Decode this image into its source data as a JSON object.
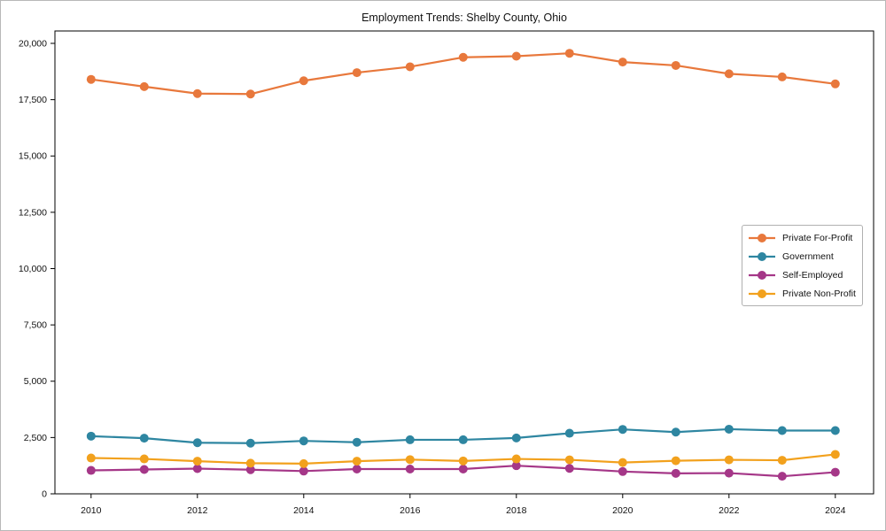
{
  "chart_data": {
    "type": "line",
    "title": "Employment Trends: Shelby County, Ohio",
    "xlabel": "",
    "ylabel": "",
    "x": [
      2010,
      2011,
      2012,
      2013,
      2014,
      2015,
      2016,
      2017,
      2018,
      2019,
      2020,
      2021,
      2022,
      2023,
      2024
    ],
    "series": [
      {
        "name": "Private For-Profit",
        "color": "#E8783C",
        "values": [
          18400,
          18080,
          17770,
          17750,
          18340,
          18700,
          18960,
          19380,
          19430,
          19560,
          19170,
          19020,
          18650,
          18510,
          18200
        ]
      },
      {
        "name": "Government",
        "color": "#2E86A1",
        "values": [
          2560,
          2470,
          2270,
          2250,
          2350,
          2290,
          2400,
          2400,
          2480,
          2690,
          2860,
          2740,
          2870,
          2810,
          2810
        ]
      },
      {
        "name": "Self-Employed",
        "color": "#A53788",
        "values": [
          1040,
          1080,
          1120,
          1070,
          1010,
          1100,
          1100,
          1100,
          1250,
          1130,
          990,
          910,
          920,
          780,
          960
        ]
      },
      {
        "name": "Private Non-Profit",
        "color": "#F2A11D",
        "values": [
          1590,
          1550,
          1450,
          1360,
          1340,
          1450,
          1520,
          1460,
          1550,
          1510,
          1390,
          1470,
          1510,
          1490,
          1750
        ]
      }
    ],
    "xticks": [
      2010,
      2012,
      2014,
      2016,
      2018,
      2020,
      2022,
      2024
    ],
    "yticks": [
      0,
      2500,
      5000,
      7500,
      10000,
      12500,
      15000,
      17500,
      20000
    ],
    "ytick_labels": [
      "0",
      "2,500",
      "5,000",
      "7,500",
      "10,000",
      "12,500",
      "15,000",
      "17,500",
      "20,000"
    ],
    "xlim": [
      2009.32,
      2024.72
    ],
    "ylim": [
      0,
      20550
    ],
    "grid": false,
    "legend_position": "center right",
    "marker": "circle"
  }
}
